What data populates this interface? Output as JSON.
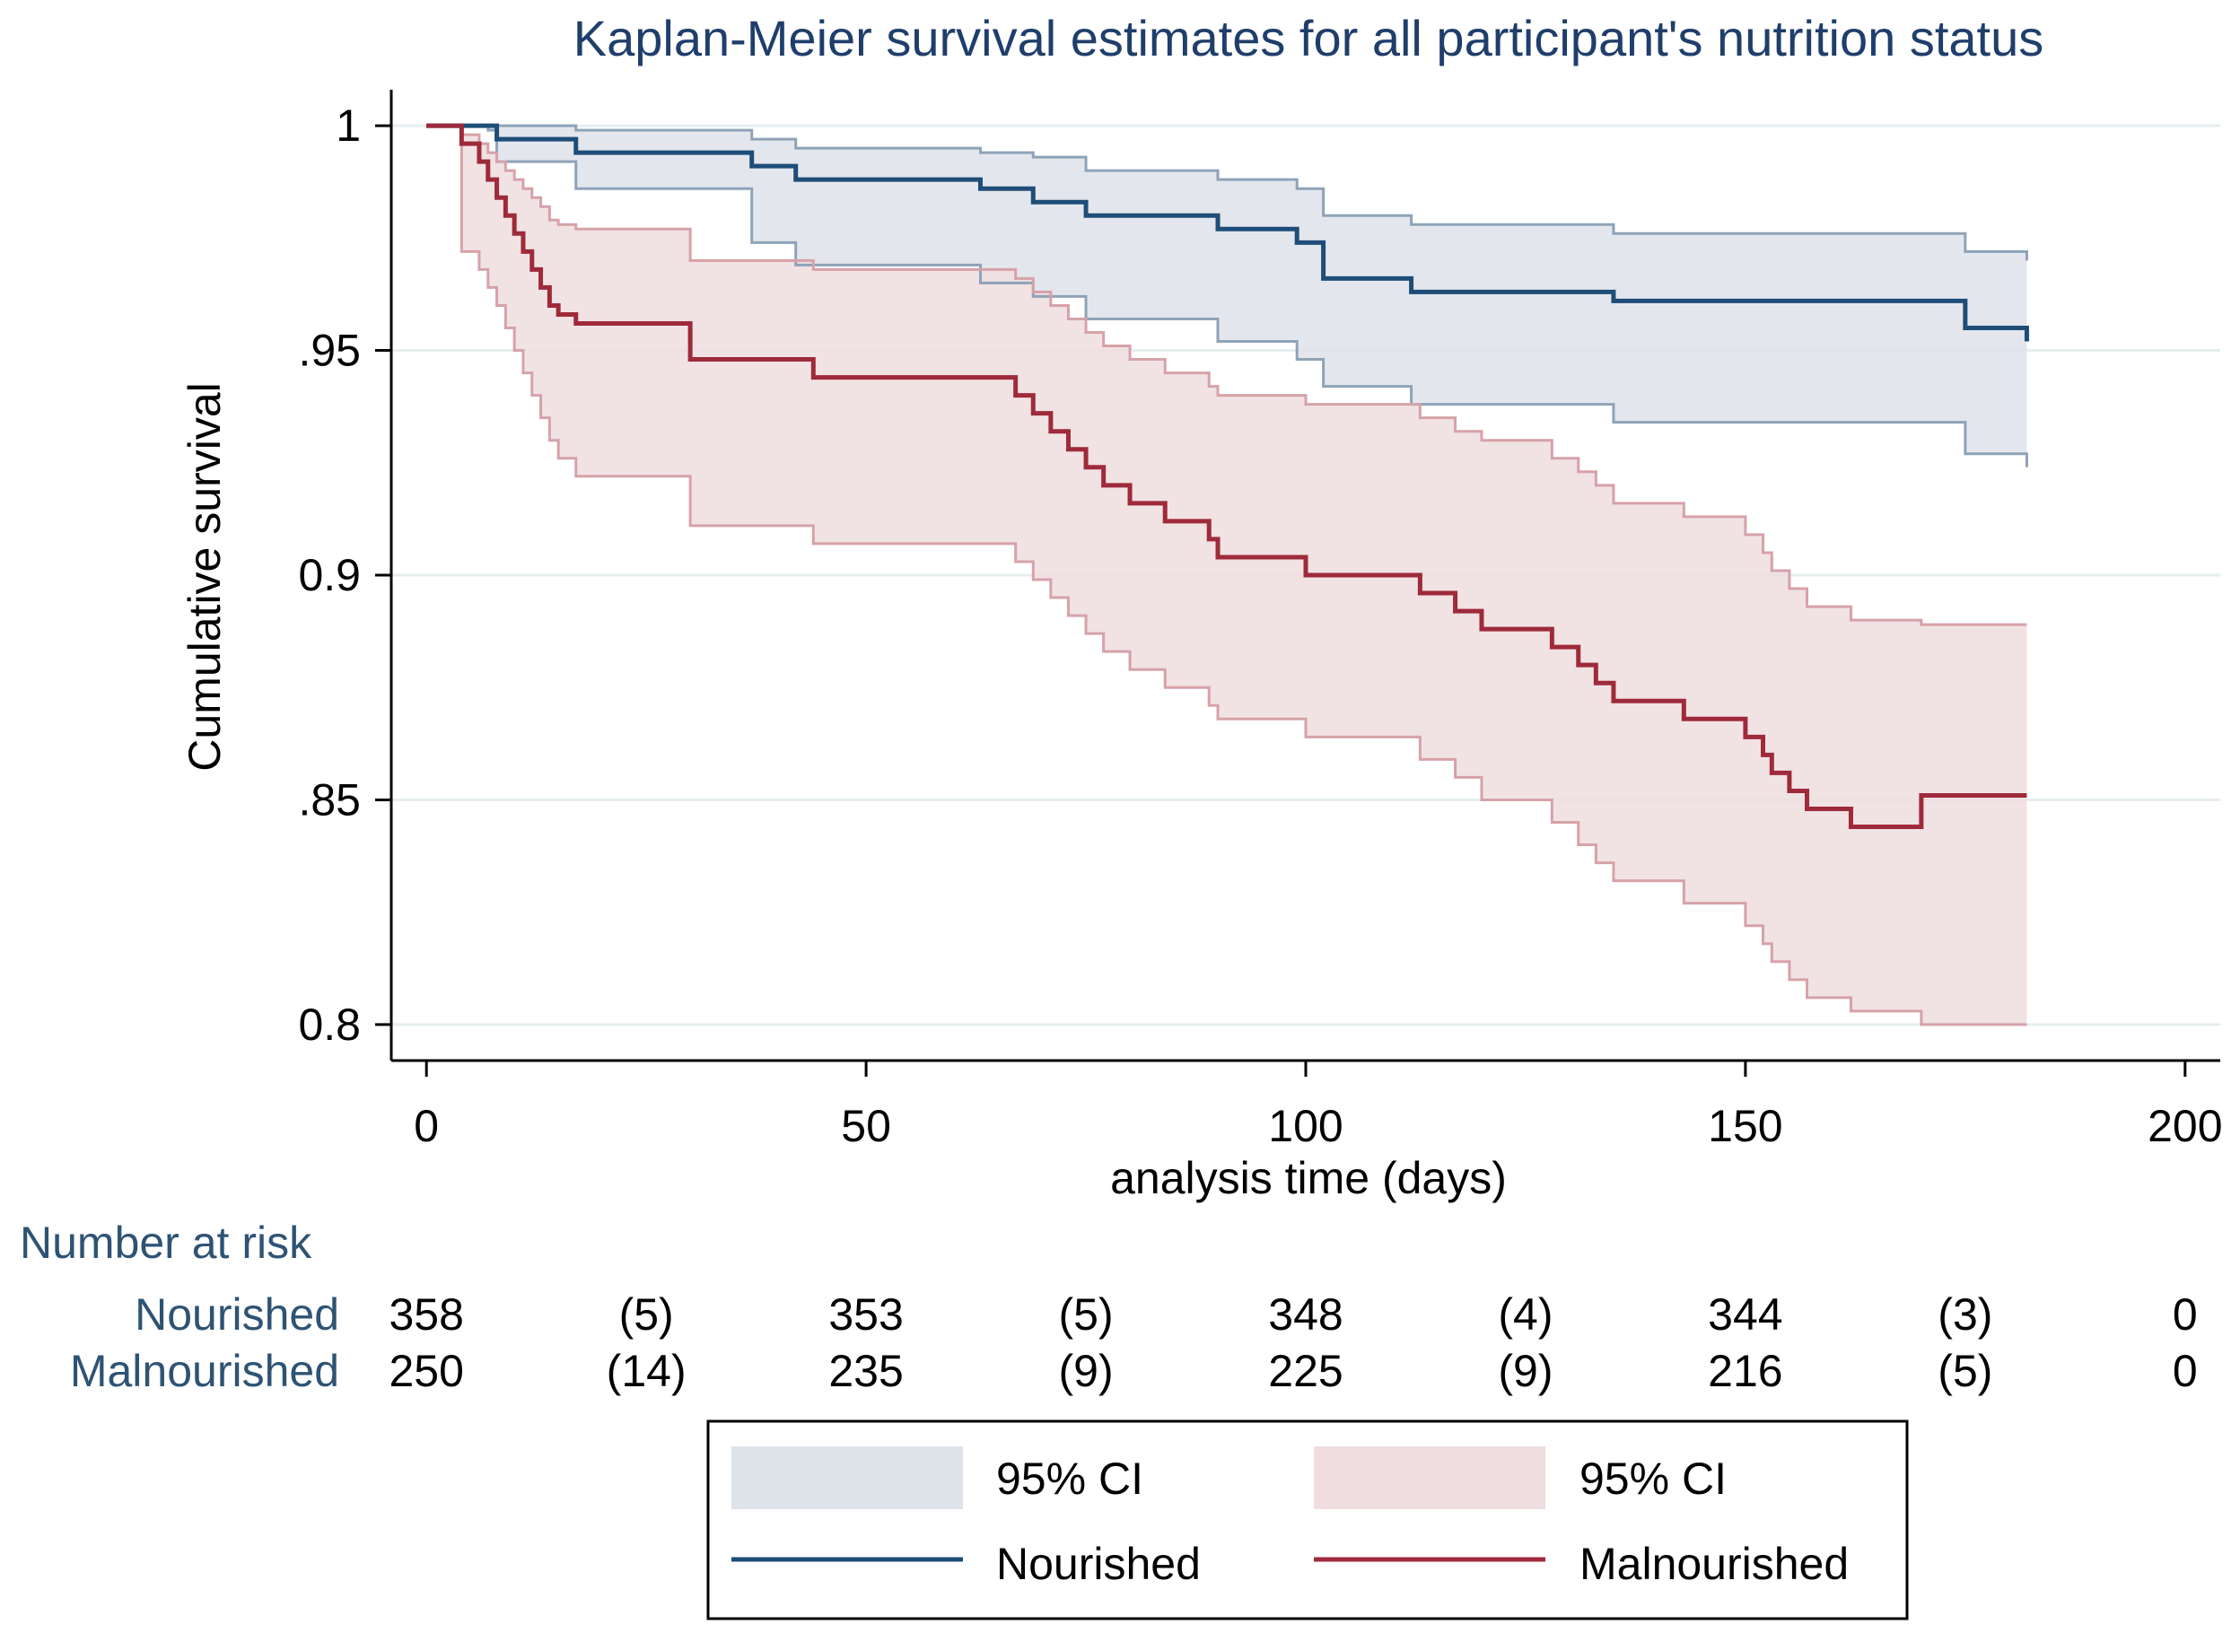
{
  "chart_data": {
    "type": "line",
    "subtype": "kaplan-meier",
    "title": "Kaplan-Meier survival estimates for all participant's nutrition status",
    "xlabel": "analysis time (days)",
    "ylabel": "Cumulative survival",
    "xlim": [
      -4,
      204
    ],
    "ylim": [
      0.792,
      1.008
    ],
    "xticks": [
      0,
      50,
      100,
      150,
      200
    ],
    "xtick_labels": [
      "0",
      "50",
      "100",
      "150",
      "200"
    ],
    "yticks": [
      0.8,
      0.85,
      0.9,
      0.95,
      1
    ],
    "ytick_labels": [
      "0.8",
      ".85",
      "0.9",
      ".95",
      "1"
    ],
    "grid": true,
    "colors": {
      "nourished_line": "#1e4d78",
      "nourished_ci_fill": "#dee3ea",
      "nourished_ci_edge": "#8ea3b8",
      "malnourished_line": "#9e2a3a",
      "malnourished_ci_fill": "#efdddf",
      "malnourished_ci_edge": "#d6a2a8",
      "grid": "#e6eef0",
      "text_label": "#2e5374"
    },
    "series": [
      {
        "name": "Nourished",
        "color_key": "nourished",
        "x": [
          0,
          4,
          7,
          8,
          17,
          37,
          42,
          63,
          69,
          75,
          90,
          99,
          102,
          112,
          135,
          175,
          182
        ],
        "y": [
          1,
          1,
          1,
          0.997,
          0.994,
          0.991,
          0.988,
          0.986,
          0.983,
          0.98,
          0.977,
          0.974,
          0.966,
          0.963,
          0.961,
          0.955,
          0.952
        ],
        "ci_lower": [
          1,
          1,
          0.999,
          0.992,
          0.986,
          0.974,
          0.969,
          0.965,
          0.962,
          0.957,
          0.952,
          0.948,
          0.942,
          0.938,
          0.934,
          0.927,
          0.924
        ],
        "ci_upper": [
          1,
          1,
          1,
          1,
          0.999,
          0.997,
          0.995,
          0.994,
          0.993,
          0.99,
          0.988,
          0.986,
          0.98,
          0.978,
          0.976,
          0.972,
          0.97
        ]
      },
      {
        "name": "Malnourished",
        "color_key": "malnourished",
        "x": [
          0,
          4,
          6,
          7,
          8,
          9,
          10,
          11,
          12,
          13,
          14,
          15,
          17,
          30,
          44,
          67,
          69,
          71,
          73,
          75,
          77,
          80,
          84,
          89,
          90,
          100,
          113,
          117,
          120,
          128,
          131,
          133,
          135,
          143,
          150,
          152,
          153,
          155,
          157,
          162,
          170
        ],
        "y": [
          1,
          0.996,
          0.992,
          0.988,
          0.984,
          0.98,
          0.976,
          0.972,
          0.968,
          0.964,
          0.96,
          0.958,
          0.956,
          0.948,
          0.944,
          0.94,
          0.936,
          0.932,
          0.928,
          0.924,
          0.92,
          0.916,
          0.912,
          0.908,
          0.904,
          0.9,
          0.896,
          0.892,
          0.888,
          0.884,
          0.88,
          0.876,
          0.872,
          0.868,
          0.864,
          0.86,
          0.856,
          0.852,
          0.848,
          0.844,
          0.851
        ],
        "ci_lower": [
          1,
          0.972,
          0.968,
          0.964,
          0.96,
          0.955,
          0.95,
          0.945,
          0.94,
          0.935,
          0.93,
          0.926,
          0.922,
          0.911,
          0.907,
          0.903,
          0.899,
          0.895,
          0.891,
          0.887,
          0.883,
          0.879,
          0.875,
          0.871,
          0.868,
          0.864,
          0.859,
          0.855,
          0.85,
          0.845,
          0.84,
          0.836,
          0.832,
          0.827,
          0.822,
          0.818,
          0.814,
          0.81,
          0.806,
          0.803,
          0.8
        ],
        "ci_upper": [
          1,
          0.998,
          0.996,
          0.994,
          0.992,
          0.99,
          0.988,
          0.986,
          0.984,
          0.982,
          0.979,
          0.978,
          0.977,
          0.97,
          0.968,
          0.966,
          0.963,
          0.96,
          0.957,
          0.954,
          0.951,
          0.948,
          0.945,
          0.942,
          0.94,
          0.938,
          0.935,
          0.932,
          0.93,
          0.926,
          0.923,
          0.92,
          0.916,
          0.913,
          0.909,
          0.905,
          0.901,
          0.897,
          0.893,
          0.89,
          0.889
        ]
      }
    ],
    "end_time": 182,
    "risk_table": {
      "header": "Number at risk",
      "times": [
        0,
        25,
        50,
        75,
        100,
        125,
        150,
        175,
        200
      ],
      "rows": [
        {
          "label": "Nourished",
          "values": [
            "358",
            "(5)",
            "353",
            "(5)",
            "348",
            "(4)",
            "344",
            "(3)",
            "0"
          ]
        },
        {
          "label": "Malnourished",
          "values": [
            "250",
            "(14)",
            "235",
            "(9)",
            "225",
            "(9)",
            "216",
            "(5)",
            "0"
          ]
        }
      ]
    },
    "legend": {
      "placement": "bottom-center",
      "items": [
        {
          "label": "95% CI",
          "kind": "fill",
          "color_key": "nourished"
        },
        {
          "label": "95% CI",
          "kind": "fill",
          "color_key": "malnourished"
        },
        {
          "label": "Nourished",
          "kind": "line",
          "color_key": "nourished"
        },
        {
          "label": "Malnourished",
          "kind": "line",
          "color_key": "malnourished"
        }
      ]
    }
  }
}
